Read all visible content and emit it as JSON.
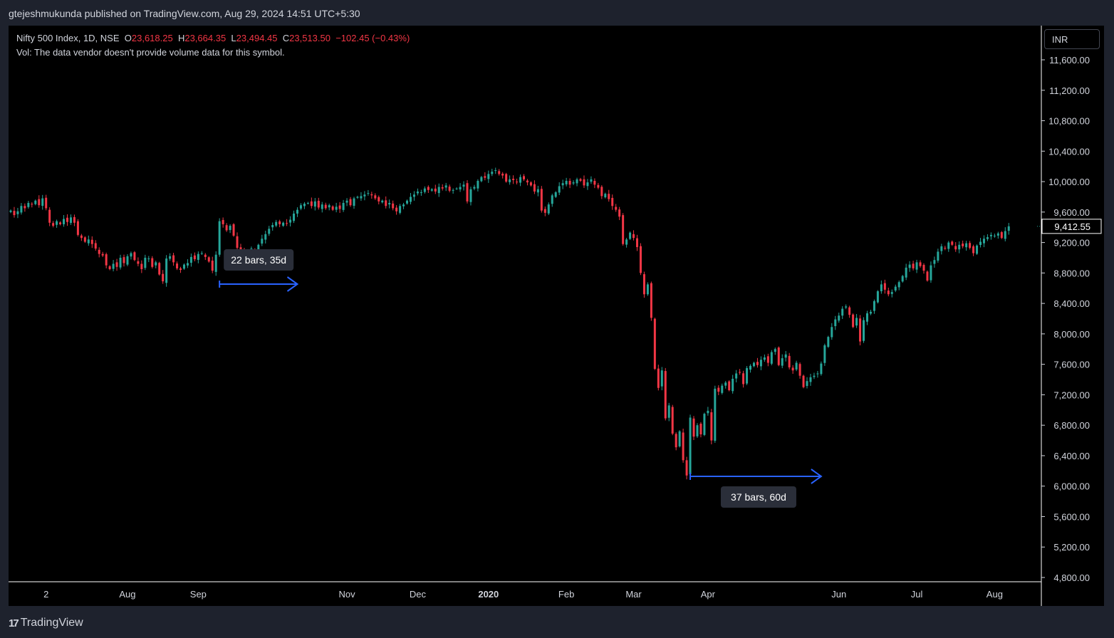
{
  "header": {
    "published_text": "gtejeshmukunda published on TradingView.com, Aug 29, 2024 14:51 UTC+5:30"
  },
  "legend": {
    "symbol": "Nifty 500 Index, 1D, NSE",
    "open_label": "O",
    "open": "23,618.25",
    "high_label": "H",
    "high": "23,664.35",
    "low_label": "L",
    "low": "23,494.45",
    "close_label": "C",
    "close": "23,513.50",
    "change": "−102.45 (−0.43%)",
    "volume_note": "Vol: The data vendor doesn't provide volume data for this symbol."
  },
  "currency_button": "INR",
  "footer": {
    "brand": "TradingView",
    "logo_glyph": "17"
  },
  "colors": {
    "up": "#26a69a",
    "down": "#f23645",
    "measure": "#2962ff",
    "background": "#000000",
    "frame": "#1e222d"
  },
  "chart_data": {
    "type": "candlestick",
    "price_scale": {
      "ticks": [
        11600,
        11200,
        10800,
        10400,
        10000,
        9600,
        9200,
        8800,
        8400,
        8000,
        7600,
        7200,
        6800,
        6400,
        6000,
        5600,
        5200,
        4800
      ],
      "tick_labels": [
        "11,600.00",
        "11,200.00",
        "10,800.00",
        "10,400.00",
        "10,000.00",
        "9,600.00",
        "9,200.00",
        "8,800.00",
        "8,400.00",
        "8,000.00",
        "7,600.00",
        "7,200.00",
        "6,800.00",
        "6,400.00",
        "6,000.00",
        "5,600.00",
        "5,200.00",
        "4,800.00"
      ],
      "last_price": 9412.55,
      "last_price_label": "9,412.55",
      "ylim": [
        4800,
        11850
      ]
    },
    "time_scale": {
      "labels": [
        {
          "text": "2",
          "bar": 10,
          "bold": false
        },
        {
          "text": "Aug",
          "bar": 33,
          "bold": false
        },
        {
          "text": "Sep",
          "bar": 53,
          "bold": false
        },
        {
          "text": "Nov",
          "bar": 95,
          "bold": false
        },
        {
          "text": "Dec",
          "bar": 115,
          "bold": false
        },
        {
          "text": "2020",
          "bar": 135,
          "bold": true
        },
        {
          "text": "Feb",
          "bar": 157,
          "bold": false
        },
        {
          "text": "Mar",
          "bar": 176,
          "bold": false
        },
        {
          "text": "Apr",
          "bar": 197,
          "bold": false
        },
        {
          "text": "Jun",
          "bar": 234,
          "bold": false
        },
        {
          "text": "Jul",
          "bar": 256,
          "bold": false
        },
        {
          "text": "Aug",
          "bar": 278,
          "bold": false
        }
      ],
      "bar_count": 291
    },
    "series": [
      {
        "name": "Nifty 500 Index",
        "closes": [
          9620,
          9560,
          9610,
          9680,
          9650,
          9720,
          9700,
          9750,
          9690,
          9780,
          9650,
          9460,
          9420,
          9480,
          9440,
          9510,
          9470,
          9530,
          9460,
          9300,
          9260,
          9210,
          9240,
          9180,
          9120,
          9050,
          9030,
          8900,
          8850,
          8920,
          8880,
          9000,
          8930,
          9020,
          9060,
          8970,
          8920,
          8850,
          9000,
          8990,
          8880,
          8940,
          8780,
          8690,
          8990,
          9020,
          8940,
          8860,
          8840,
          8910,
          8930,
          9010,
          8980,
          9050,
          9060,
          9010,
          8950,
          8830,
          9040,
          9480,
          9440,
          9360,
          9420,
          9290,
          9130,
          9110,
          9020,
          9080,
          9120,
          9080,
          9170,
          9250,
          9310,
          9380,
          9430,
          9470,
          9440,
          9460,
          9450,
          9500,
          9580,
          9630,
          9690,
          9710,
          9720,
          9680,
          9740,
          9660,
          9700,
          9650,
          9690,
          9630,
          9670,
          9640,
          9720,
          9750,
          9690,
          9780,
          9800,
          9810,
          9830,
          9850,
          9820,
          9780,
          9740,
          9750,
          9680,
          9720,
          9650,
          9610,
          9680,
          9700,
          9750,
          9800,
          9830,
          9870,
          9860,
          9910,
          9890,
          9900,
          9870,
          9930,
          9910,
          9950,
          9880,
          9890,
          9910,
          9930,
          9960,
          9740,
          9900,
          9930,
          10010,
          10060,
          10050,
          10100,
          10130,
          10150,
          10100,
          10080,
          10000,
          10030,
          10020,
          9990,
          10060,
          10030,
          9990,
          9950,
          9870,
          9900,
          9620,
          9590,
          9700,
          9820,
          9860,
          9940,
          9980,
          10010,
          9960,
          9990,
          10030,
          10010,
          9950,
          9990,
          10030,
          9960,
          9920,
          9810,
          9840,
          9770,
          9680,
          9630,
          9540,
          9180,
          9240,
          9330,
          9260,
          9140,
          8800,
          8520,
          8650,
          8210,
          7540,
          7290,
          7520,
          6890,
          7060,
          6690,
          6510,
          6720,
          6340,
          6140,
          6900,
          6650,
          6800,
          6680,
          6950,
          6990,
          6600,
          7280,
          7240,
          7320,
          7360,
          7260,
          7410,
          7480,
          7490,
          7340,
          7550,
          7580,
          7620,
          7590,
          7660,
          7690,
          7620,
          7760,
          7800,
          7590,
          7680,
          7730,
          7560,
          7520,
          7620,
          7450,
          7300,
          7380,
          7430,
          7450,
          7480,
          7610,
          7850,
          7960,
          8090,
          8190,
          8240,
          8330,
          8360,
          8250,
          8090,
          8210,
          7900,
          8180,
          8270,
          8290,
          8430,
          8560,
          8650,
          8580,
          8520,
          8550,
          8620,
          8680,
          8760,
          8870,
          8910,
          8860,
          8940,
          8890,
          8830,
          8700,
          8900,
          8970,
          9080,
          9150,
          9120,
          9200,
          9170,
          9110,
          9170,
          9150,
          9190,
          9130,
          9060,
          9160,
          9210,
          9250,
          9270,
          9300,
          9290,
          9320,
          9260,
          9350,
          9412.55
        ]
      }
    ],
    "annotations": [
      {
        "type": "date-range",
        "from_bar": 59,
        "to_bar": 81,
        "price": 8690,
        "label": "22 bars, 35d"
      },
      {
        "type": "date-range",
        "from_bar": 192,
        "to_bar": 229,
        "price": 6140,
        "label": "37 bars, 60d"
      }
    ]
  }
}
